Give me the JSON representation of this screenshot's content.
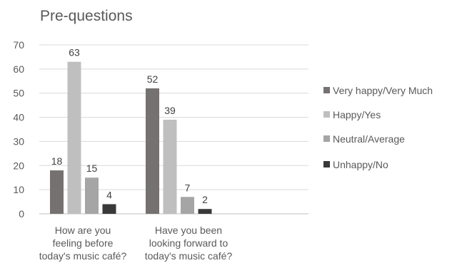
{
  "chart_data": {
    "type": "bar",
    "title": "Pre-questions",
    "categories": [
      [
        "How are you",
        "feeling before",
        "today's music café?"
      ],
      [
        "Have you been",
        "looking forward to",
        "today's music café?"
      ]
    ],
    "series": [
      {
        "name": "Very happy/Very Much",
        "color": "#767171",
        "values": [
          18,
          52
        ]
      },
      {
        "name": "Happy/Yes",
        "color": "#bfbfbf",
        "values": [
          63,
          39
        ]
      },
      {
        "name": "Neutral/Average",
        "color": "#a5a5a5",
        "values": [
          15,
          7
        ]
      },
      {
        "name": "Unhappy/No",
        "color": "#3a3838",
        "values": [
          4,
          2
        ]
      }
    ],
    "ylim": [
      0,
      70
    ],
    "yticks": [
      0,
      10,
      20,
      30,
      40,
      50,
      60,
      70
    ],
    "grid": true,
    "legend": "right",
    "xlabel": "",
    "ylabel": ""
  }
}
